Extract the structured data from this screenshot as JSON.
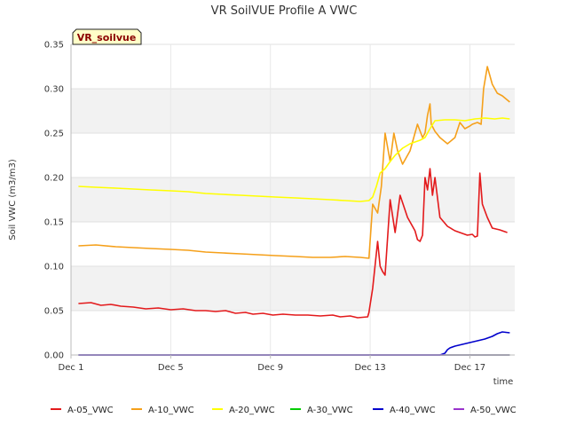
{
  "chart_data": {
    "type": "line",
    "title": "VR SoilVUE Profile A VWC",
    "xlabel": "time",
    "ylabel": "Soil VWC (m3/m3)",
    "badge": "VR_soilvue",
    "xlim": [
      1,
      18.8
    ],
    "ylim": [
      0,
      0.35
    ],
    "x_ticks": [
      {
        "value": 1,
        "label": "Dec 1"
      },
      {
        "value": 5,
        "label": "Dec 5"
      },
      {
        "value": 9,
        "label": "Dec 9"
      },
      {
        "value": 13,
        "label": "Dec 13"
      },
      {
        "value": 17,
        "label": "Dec 17"
      }
    ],
    "y_ticks": [
      {
        "value": 0,
        "label": "0.00"
      },
      {
        "value": 0.05,
        "label": "0.05"
      },
      {
        "value": 0.1,
        "label": "0.10"
      },
      {
        "value": 0.15,
        "label": "0.15"
      },
      {
        "value": 0.2,
        "label": "0.20"
      },
      {
        "value": 0.25,
        "label": "0.25"
      },
      {
        "value": 0.3,
        "label": "0.30"
      },
      {
        "value": 0.35,
        "label": "0.35"
      }
    ],
    "series": [
      {
        "name": "A-05_VWC",
        "color": "#e31a1c",
        "x": [
          1.3,
          1.8,
          2.2,
          2.6,
          3.0,
          3.5,
          4.0,
          4.5,
          5.0,
          5.5,
          6.0,
          6.4,
          6.8,
          7.2,
          7.6,
          8.0,
          8.3,
          8.7,
          9.1,
          9.5,
          10.0,
          10.5,
          11.0,
          11.5,
          11.8,
          12.2,
          12.5,
          12.9,
          12.95,
          13.1,
          13.3,
          13.4,
          13.5,
          13.6,
          13.8,
          14.0,
          14.2,
          14.5,
          14.8,
          14.9,
          15.0,
          15.1,
          15.2,
          15.3,
          15.4,
          15.5,
          15.6,
          15.8,
          16.1,
          16.4,
          16.6,
          16.9,
          17.1,
          17.2,
          17.3,
          17.4,
          17.5,
          17.7,
          17.9,
          18.2,
          18.5
        ],
        "y": [
          0.058,
          0.059,
          0.056,
          0.057,
          0.055,
          0.054,
          0.052,
          0.053,
          0.051,
          0.052,
          0.05,
          0.05,
          0.049,
          0.05,
          0.047,
          0.048,
          0.046,
          0.047,
          0.045,
          0.046,
          0.045,
          0.045,
          0.044,
          0.045,
          0.043,
          0.044,
          0.042,
          0.043,
          0.048,
          0.075,
          0.128,
          0.1,
          0.094,
          0.09,
          0.175,
          0.138,
          0.18,
          0.155,
          0.14,
          0.13,
          0.128,
          0.135,
          0.2,
          0.186,
          0.21,
          0.18,
          0.2,
          0.155,
          0.145,
          0.14,
          0.138,
          0.135,
          0.136,
          0.133,
          0.134,
          0.205,
          0.17,
          0.155,
          0.143,
          0.141,
          0.138
        ]
      },
      {
        "name": "A-10_VWC",
        "color": "#f5a01a",
        "x": [
          1.3,
          2.0,
          2.8,
          3.5,
          4.2,
          5.0,
          5.7,
          6.4,
          7.1,
          7.8,
          8.5,
          9.2,
          10.0,
          10.7,
          11.4,
          12.0,
          12.6,
          12.95,
          13.1,
          13.3,
          13.45,
          13.6,
          13.8,
          13.95,
          14.1,
          14.3,
          14.6,
          14.9,
          15.1,
          15.2,
          15.3,
          15.4,
          15.45,
          15.6,
          15.8,
          16.1,
          16.4,
          16.6,
          16.8,
          17.0,
          17.1,
          17.3,
          17.45,
          17.55,
          17.7,
          17.9,
          18.1,
          18.3,
          18.6
        ],
        "y": [
          0.123,
          0.124,
          0.122,
          0.121,
          0.12,
          0.119,
          0.118,
          0.116,
          0.115,
          0.114,
          0.113,
          0.112,
          0.111,
          0.11,
          0.11,
          0.111,
          0.11,
          0.109,
          0.17,
          0.16,
          0.19,
          0.25,
          0.218,
          0.25,
          0.23,
          0.215,
          0.23,
          0.26,
          0.245,
          0.25,
          0.27,
          0.283,
          0.26,
          0.252,
          0.245,
          0.238,
          0.245,
          0.262,
          0.255,
          0.258,
          0.26,
          0.262,
          0.26,
          0.3,
          0.325,
          0.305,
          0.295,
          0.292,
          0.285
        ]
      },
      {
        "name": "A-20_VWC",
        "color": "#ffff00",
        "x": [
          1.3,
          2.0,
          2.8,
          3.5,
          4.2,
          5.0,
          5.7,
          6.4,
          7.1,
          7.8,
          8.5,
          9.2,
          10.0,
          10.7,
          11.4,
          12.0,
          12.6,
          12.95,
          13.1,
          13.25,
          13.4,
          13.6,
          13.8,
          14.0,
          14.3,
          14.6,
          14.8,
          15.0,
          15.2,
          15.4,
          15.6,
          16.0,
          16.4,
          16.8,
          17.2,
          17.6,
          18.0,
          18.3,
          18.6
        ],
        "y": [
          0.19,
          0.189,
          0.188,
          0.187,
          0.186,
          0.185,
          0.184,
          0.182,
          0.181,
          0.18,
          0.179,
          0.178,
          0.177,
          0.176,
          0.175,
          0.174,
          0.173,
          0.174,
          0.178,
          0.19,
          0.205,
          0.21,
          0.218,
          0.225,
          0.233,
          0.238,
          0.24,
          0.242,
          0.245,
          0.255,
          0.264,
          0.265,
          0.265,
          0.264,
          0.266,
          0.267,
          0.266,
          0.267,
          0.266
        ]
      },
      {
        "name": "A-30_VWC",
        "color": "#00cc00",
        "x": [
          1.3,
          18.6
        ],
        "y": [
          0,
          0
        ]
      },
      {
        "name": "A-40_VWC",
        "color": "#0000cc",
        "x": [
          1.3,
          15.8,
          16.0,
          16.1,
          16.2,
          16.4,
          16.7,
          17.0,
          17.3,
          17.6,
          17.9,
          18.1,
          18.3,
          18.6
        ],
        "y": [
          0,
          0,
          0.002,
          0.006,
          0.008,
          0.01,
          0.012,
          0.014,
          0.016,
          0.018,
          0.021,
          0.024,
          0.026,
          0.025
        ]
      },
      {
        "name": "A-50_VWC",
        "color": "#9933cc",
        "x": [
          1.3,
          18.6
        ],
        "y": [
          0,
          0
        ]
      }
    ]
  }
}
